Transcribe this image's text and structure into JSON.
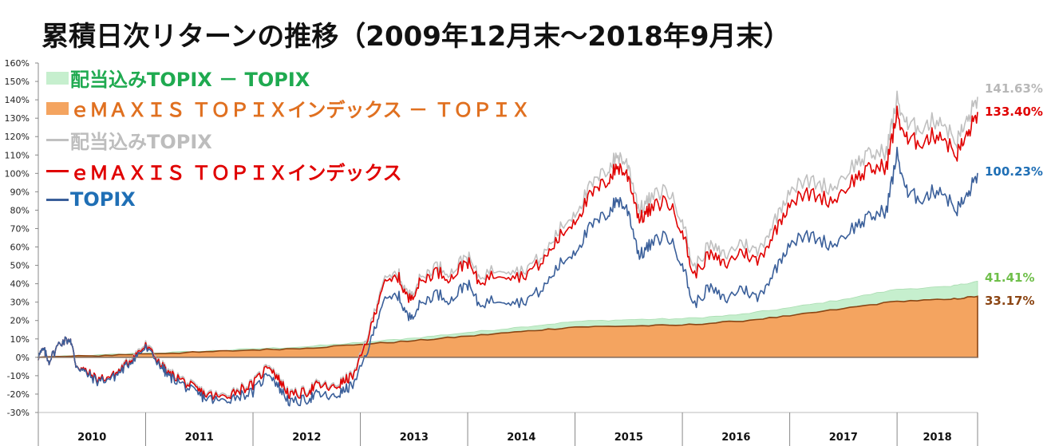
{
  "title": "累積日次リターンの推移（2009年12月末～2018年9月末）",
  "chart_data": {
    "type": "line",
    "y_unit": "%",
    "ylim": [
      -30,
      160
    ],
    "yticks": [
      -30,
      -20,
      -10,
      0,
      10,
      20,
      30,
      40,
      50,
      60,
      70,
      80,
      90,
      100,
      110,
      120,
      130,
      140,
      150,
      160
    ],
    "ytick_labels": [
      "-30%",
      "-20%",
      "-10%",
      "0%",
      "10%",
      "20%",
      "30%",
      "40%",
      "50%",
      "60%",
      "70%",
      "80%",
      "90%",
      "100%",
      "110%",
      "120%",
      "130%",
      "140%",
      "150%",
      "160%"
    ],
    "x_range": [
      "2009-12-31",
      "2018-09-30"
    ],
    "x_categories": [
      "2010",
      "2011",
      "2012",
      "2013",
      "2014",
      "2015",
      "2016",
      "2017",
      "2018"
    ],
    "legend_position": "top-left",
    "series": [
      {
        "name": "配当込みTOPIX － TOPIX",
        "kind": "area",
        "color": "#c6efce",
        "x": [
          2009.99,
          2010.5,
          2011.0,
          2011.5,
          2012.0,
          2012.5,
          2013.0,
          2013.5,
          2014.0,
          2014.5,
          2015.0,
          2015.5,
          2016.0,
          2016.5,
          2017.0,
          2017.5,
          2018.0,
          2018.5,
          2018.75
        ],
        "values": [
          0,
          1.0,
          2.3,
          3.2,
          4.6,
          5.8,
          8.0,
          10.5,
          13.5,
          16.5,
          19.5,
          20.5,
          21.0,
          23.0,
          27.0,
          31.5,
          37.0,
          38.5,
          41.41
        ]
      },
      {
        "name": "ｅＭＡＸＩＳ ＴＯＰＩＸインデックス － ＴＯＰＩＸ",
        "kind": "area",
        "color": "#f4a460",
        "x": [
          2009.99,
          2010.5,
          2011.0,
          2011.5,
          2012.0,
          2012.5,
          2013.0,
          2013.5,
          2014.0,
          2014.5,
          2015.0,
          2015.5,
          2016.0,
          2016.5,
          2017.0,
          2017.5,
          2018.0,
          2018.5,
          2018.75
        ],
        "values": [
          0,
          0.8,
          1.9,
          2.8,
          4.0,
          5.0,
          7.0,
          9.0,
          11.5,
          14.0,
          16.5,
          17.0,
          17.5,
          19.5,
          22.5,
          26.5,
          30.5,
          31.5,
          33.17
        ]
      },
      {
        "name": "配当込みTOPIX",
        "kind": "line",
        "color": "#c0c0c0",
        "x": [
          2009.99,
          2010.05,
          2010.1,
          2010.2,
          2010.3,
          2010.35,
          2010.45,
          2010.55,
          2010.7,
          2010.8,
          2010.9,
          2011.0,
          2011.15,
          2011.2,
          2011.3,
          2011.45,
          2011.55,
          2011.7,
          2011.85,
          2012.0,
          2012.15,
          2012.25,
          2012.35,
          2012.5,
          2012.6,
          2012.75,
          2012.85,
          2012.95,
          2013.1,
          2013.2,
          2013.35,
          2013.45,
          2013.55,
          2013.7,
          2013.85,
          2013.99,
          2014.1,
          2014.3,
          2014.5,
          2014.7,
          2014.85,
          2015.0,
          2015.15,
          2015.3,
          2015.4,
          2015.5,
          2015.6,
          2015.7,
          2015.85,
          2016.0,
          2016.1,
          2016.25,
          2016.4,
          2016.55,
          2016.7,
          2016.85,
          2017.0,
          2017.2,
          2017.4,
          2017.6,
          2017.75,
          2017.9,
          2018.0,
          2018.1,
          2018.25,
          2018.4,
          2018.55,
          2018.65,
          2018.75
        ],
        "values": [
          0,
          4,
          -2,
          8,
          10,
          -4,
          -8,
          -12,
          -10,
          -4,
          2,
          7,
          -3,
          -8,
          -10,
          -16,
          -19,
          -21,
          -17,
          -14,
          -3,
          -12,
          -20,
          -18,
          -14,
          -16,
          -12,
          -8,
          18,
          40,
          46,
          33,
          42,
          50,
          46,
          56,
          44,
          49,
          47,
          55,
          69,
          79,
          93,
          102,
          110,
          104,
          80,
          86,
          92,
          76,
          48,
          61,
          55,
          63,
          57,
          73,
          92,
          96,
          92,
          105,
          110,
          112,
          140,
          125,
          126,
          130,
          117,
          128,
          141.63
        ]
      },
      {
        "name": "ｅＭＡＸＩＳ ＴＯＰＩＸインデックス",
        "kind": "line",
        "color": "#e00000",
        "x": [
          2009.99,
          2010.05,
          2010.1,
          2010.2,
          2010.3,
          2010.35,
          2010.45,
          2010.55,
          2010.7,
          2010.8,
          2010.9,
          2011.0,
          2011.15,
          2011.2,
          2011.3,
          2011.45,
          2011.55,
          2011.7,
          2011.85,
          2012.0,
          2012.15,
          2012.25,
          2012.35,
          2012.5,
          2012.6,
          2012.75,
          2012.85,
          2012.95,
          2013.1,
          2013.2,
          2013.35,
          2013.45,
          2013.55,
          2013.7,
          2013.85,
          2013.99,
          2014.1,
          2014.3,
          2014.5,
          2014.7,
          2014.85,
          2015.0,
          2015.15,
          2015.3,
          2015.4,
          2015.5,
          2015.6,
          2015.7,
          2015.85,
          2016.0,
          2016.1,
          2016.25,
          2016.4,
          2016.55,
          2016.7,
          2016.85,
          2017.0,
          2017.2,
          2017.4,
          2017.6,
          2017.75,
          2017.9,
          2018.0,
          2018.1,
          2018.25,
          2018.4,
          2018.55,
          2018.65,
          2018.75
        ],
        "values": [
          0,
          4,
          -2,
          8,
          10,
          -4,
          -8,
          -12,
          -10,
          -5,
          1,
          6,
          -4,
          -9,
          -11,
          -17,
          -20,
          -22,
          -18,
          -15,
          -4,
          -13,
          -21,
          -19,
          -15,
          -17,
          -13,
          -9,
          16,
          38,
          44,
          31,
          40,
          47,
          43,
          53,
          41,
          46,
          44,
          52,
          65,
          75,
          88,
          96,
          104,
          98,
          75,
          80,
          86,
          70,
          44,
          56,
          50,
          58,
          52,
          67,
          85,
          89,
          85,
          97,
          102,
          104,
          132,
          117,
          118,
          122,
          110,
          120,
          133.4
        ]
      },
      {
        "name": "TOPIX",
        "kind": "line",
        "color": "#3a5f9a",
        "x": [
          2009.99,
          2010.05,
          2010.1,
          2010.2,
          2010.3,
          2010.35,
          2010.45,
          2010.55,
          2010.7,
          2010.8,
          2010.9,
          2011.0,
          2011.15,
          2011.2,
          2011.3,
          2011.45,
          2011.55,
          2011.7,
          2011.85,
          2012.0,
          2012.15,
          2012.25,
          2012.35,
          2012.5,
          2012.6,
          2012.75,
          2012.85,
          2012.95,
          2013.1,
          2013.2,
          2013.35,
          2013.45,
          2013.55,
          2013.7,
          2013.85,
          2013.99,
          2014.1,
          2014.3,
          2014.5,
          2014.7,
          2014.85,
          2015.0,
          2015.15,
          2015.3,
          2015.4,
          2015.5,
          2015.6,
          2015.7,
          2015.85,
          2016.0,
          2016.1,
          2016.25,
          2016.4,
          2016.55,
          2016.7,
          2016.85,
          2017.0,
          2017.2,
          2017.4,
          2017.6,
          2017.75,
          2017.9,
          2018.0,
          2018.1,
          2018.25,
          2018.4,
          2018.55,
          2018.65,
          2018.75
        ],
        "values": [
          0,
          4,
          -2,
          8,
          10,
          -4,
          -9,
          -13,
          -11,
          -6,
          0,
          5,
          -5,
          -10,
          -13,
          -19,
          -22,
          -24,
          -21,
          -19,
          -8,
          -17,
          -25,
          -23,
          -20,
          -22,
          -18,
          -14,
          9,
          29,
          34,
          21,
          28,
          35,
          31,
          41,
          29,
          32,
          30,
          37,
          50,
          58,
          71,
          78,
          86,
          79,
          55,
          61,
          67,
          52,
          28,
          38,
          31,
          38,
          32,
          46,
          63,
          66,
          61,
          71,
          76,
          80,
          110,
          88,
          87,
          92,
          80,
          87,
          100.23
        ]
      }
    ],
    "end_labels": [
      {
        "text": "141.63%",
        "color": "#b8b8b8",
        "value": 141.63
      },
      {
        "text": "133.40%",
        "color": "#e00000",
        "value": 133.4
      },
      {
        "text": "100.23%",
        "color": "#1f6fb5",
        "value": 100.23
      },
      {
        "text": "41.41%",
        "color": "#6fbf4a",
        "value": 41.41
      },
      {
        "text": "33.17%",
        "color": "#8b4513",
        "value": 33.17
      }
    ]
  },
  "legend": [
    {
      "label": "配当込みTOPIX － TOPIX",
      "swatch": "area",
      "color": "#c6efce",
      "text_color": "#1faa50"
    },
    {
      "label": "ｅＭＡＸＩＳ ＴＯＰＩＸインデックス － ＴＯＰＩＸ",
      "swatch": "area",
      "color": "#f4a460",
      "text_color": "#e07020"
    },
    {
      "label": "配当込みTOPIX",
      "swatch": "line",
      "color": "#c0c0c0",
      "text_color": "#bdbdbd"
    },
    {
      "label": "ｅＭＡＸＩＳ ＴＯＰＩＸインデックス",
      "swatch": "line",
      "color": "#e00000",
      "text_color": "#e00000"
    },
    {
      "label": "TOPIX",
      "swatch": "line",
      "color": "#3a5f9a",
      "text_color": "#1f6fb5"
    }
  ]
}
